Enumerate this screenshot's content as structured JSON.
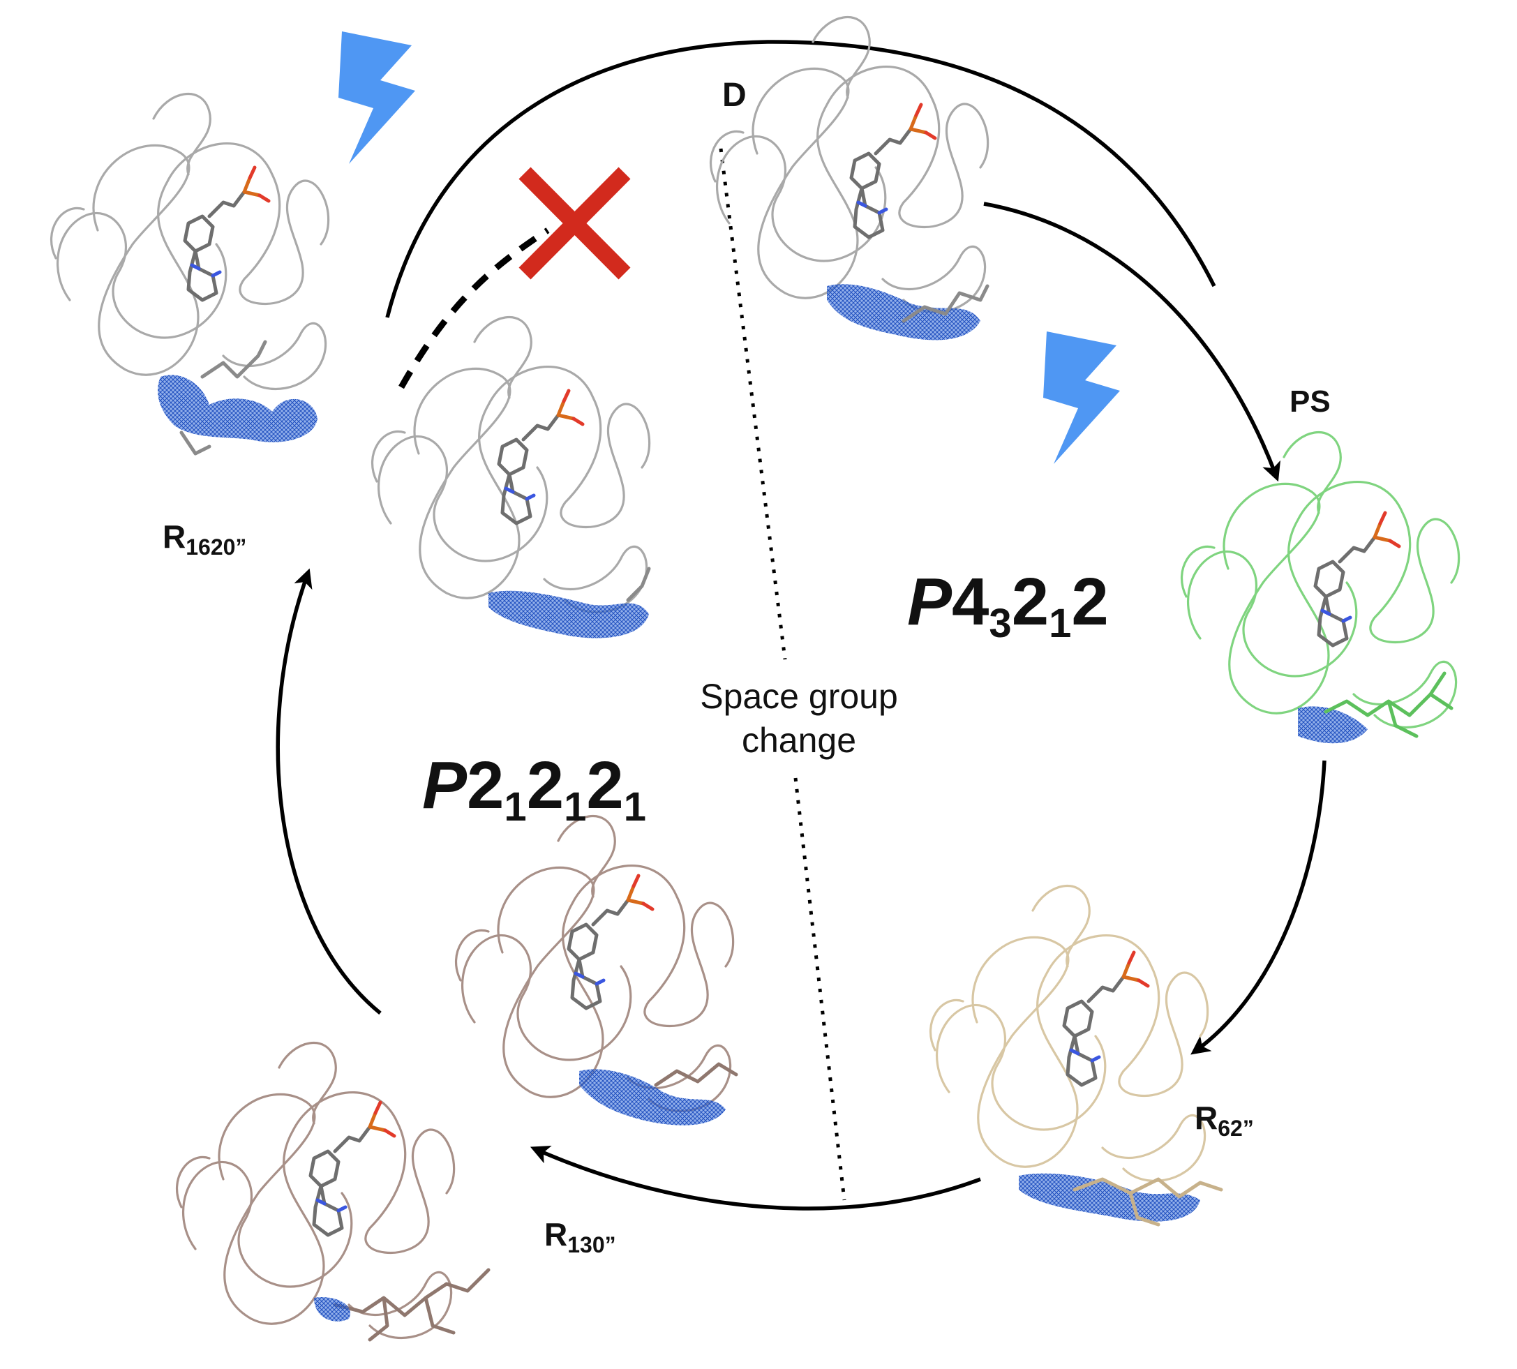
{
  "labels": {
    "dark": "D",
    "photostationary": "PS",
    "r62": "62”",
    "r130": "130”",
    "r1620": "1620”",
    "r_prefix": "R"
  },
  "space_groups": {
    "tetragonal": {
      "italic": "P",
      "parts": [
        "4",
        "3",
        "2",
        "1",
        "2"
      ]
    },
    "orthorhombic": {
      "italic": "P",
      "parts": [
        "2",
        "1",
        "2",
        "1",
        "2",
        "1"
      ]
    }
  },
  "annotation": {
    "line1": "Space group",
    "line2": "change"
  },
  "colors": {
    "arrow": "#000000",
    "flash": "#4f97f3",
    "cross": "#d22a1d",
    "mesh": "#3a6fd8",
    "dark_state": "#a9a9a9",
    "ps_state": "#7fd47f",
    "r62_state": "#d8c7a4",
    "r130_state": "#a89088",
    "r1620_state": "#a9a9a9"
  },
  "icons": [
    "lightning-icon",
    "lightning-icon",
    "cross-icon"
  ]
}
